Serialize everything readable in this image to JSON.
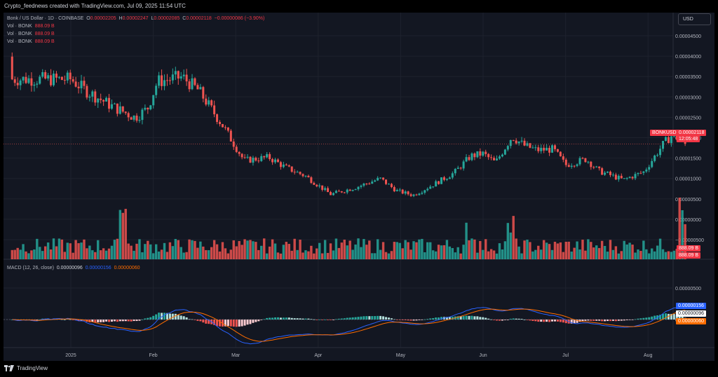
{
  "header": {
    "caption": "Crypto_feednews created with TradingView.com, Jul 09, 2025 11:54 UTC"
  },
  "legend": {
    "symbol": "Bonk / US Dollar · 1D · COINBASE",
    "o_label": "O",
    "o_value": "0.00002205",
    "h_label": "H",
    "h_value": "0.00002247",
    "l_label": "L",
    "l_value": "0.00002085",
    "c_label": "C",
    "c_value": "0.00002118",
    "change": "−0.00000086 (−3.90%)",
    "vol_rows": [
      {
        "label": "Vol · BONK",
        "value": "888.09 B"
      },
      {
        "label": "Vol · BONK",
        "value": "888.09 B"
      },
      {
        "label": "Vol · BONK",
        "value": "888.09 B"
      }
    ],
    "macd_label": "MACD (12, 26, close)",
    "macd_hist": "0.00000096",
    "macd_line": "0.00000156",
    "macd_signal": "0.00000060"
  },
  "currency_button": "USD",
  "brand": "TradingView",
  "price_tag": {
    "symbol": "BONKUSD",
    "value": "0.00002118",
    "countdown": "12:05:48"
  },
  "volume_tags": [
    "888.09 B",
    "888.09 B"
  ],
  "macd_tags": [
    "0.00000156",
    "0.00000096",
    "0.00000060"
  ],
  "colors": {
    "up": "#26a69a",
    "down": "#ef5350",
    "macd": "#2962ff",
    "signal": "#ff6d00",
    "bg": "#131722",
    "grid": "#1e222d"
  },
  "chart_data": {
    "type": "candlestick",
    "x_ticks": [
      "2025",
      "Feb",
      "Mar",
      "Apr",
      "May",
      "Jun",
      "Jul",
      "Aug"
    ],
    "price_ticks": [
      "0.00004500",
      "0.00004000",
      "0.00003500",
      "0.00003000",
      "0.00002500",
      "0.00002000",
      "0.00001500",
      "0.00001000",
      "0.00000500",
      "0.00000000",
      "−0.00000500"
    ],
    "macd_ticks": [
      "0.00000500",
      "0.00000000"
    ],
    "price_range": [
      -5e-06,
      4.667e-05
    ],
    "close_anchors": [
      {
        "month": 0.0,
        "close": 3.55e-05
      },
      {
        "month": 0.18,
        "close": 3.3e-05
      },
      {
        "month": 0.5,
        "close": 2.95e-05
      },
      {
        "month": 0.78,
        "close": 2.7e-05
      },
      {
        "month": 0.93,
        "close": 2.9e-05
      },
      {
        "month": 1.05,
        "close": 3.5e-05
      },
      {
        "month": 1.35,
        "close": 3.6e-05
      },
      {
        "month": 1.55,
        "close": 3.3e-05
      },
      {
        "month": 1.85,
        "close": 2.5e-05
      },
      {
        "month": 2.1,
        "close": 1.75e-05
      },
      {
        "month": 2.4,
        "close": 1.82e-05
      },
      {
        "month": 2.6,
        "close": 1.6e-05
      },
      {
        "month": 2.85,
        "close": 1.4e-05
      },
      {
        "month": 3.15,
        "close": 1e-05
      },
      {
        "month": 3.45,
        "close": 1.15e-05
      },
      {
        "month": 3.75,
        "close": 1.35e-05
      },
      {
        "month": 3.95,
        "close": 1.08e-05
      },
      {
        "month": 4.15,
        "close": 9.8e-06
      },
      {
        "month": 4.4,
        "close": 1.22e-05
      },
      {
        "month": 4.65,
        "close": 1.48e-05
      },
      {
        "month": 4.85,
        "close": 1.85e-05
      },
      {
        "month": 5.0,
        "close": 1.9e-05
      },
      {
        "month": 5.15,
        "close": 1.7e-05
      },
      {
        "month": 5.35,
        "close": 2.28e-05
      },
      {
        "month": 5.5,
        "close": 2.08e-05
      },
      {
        "month": 5.65,
        "close": 1.98e-05
      },
      {
        "month": 5.85,
        "close": 2e-05
      },
      {
        "month": 6.0,
        "close": 1.65e-05
      },
      {
        "month": 6.25,
        "close": 1.78e-05
      },
      {
        "month": 6.4,
        "close": 1.52e-05
      },
      {
        "month": 6.7,
        "close": 1.32e-05
      },
      {
        "month": 6.95,
        "close": 1.5e-05
      },
      {
        "month": 7.2,
        "close": 2.15e-05
      },
      {
        "month": 7.3,
        "close": 2.32e-05
      },
      {
        "month": 7.45,
        "close": 2.12e-05
      }
    ],
    "last_close": 2.118e-05
  }
}
